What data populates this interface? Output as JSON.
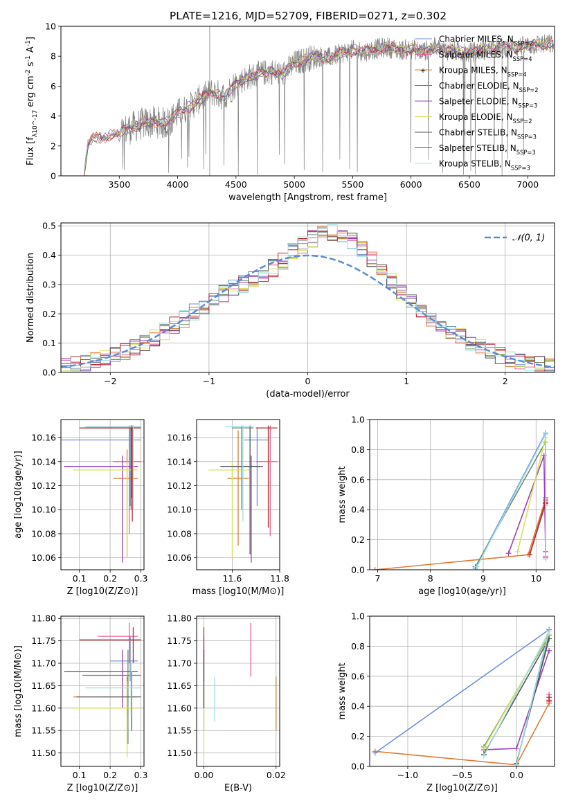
{
  "figure": {
    "title": "PLATE=1216, MJD=52709, FIBERID=0271, z=0.302"
  },
  "colors": {
    "c0": "#6a8fd6",
    "c1": "#e8609d",
    "c2": "#e07a33",
    "c3": "#6b8a6b",
    "c4": "#9a3fb8",
    "c5": "#d8e050",
    "c6": "#555555",
    "c7": "#c0262b",
    "c8": "#9fe0e6",
    "data": "#808080",
    "gauss": "#5b8ad8"
  },
  "chart_data": [
    {
      "id": "spectrum",
      "type": "line",
      "xlabel": "wavelength [Angstrom, rest frame]",
      "ylabel": "Flux [f_λ10^-17 erg cm^-2 s^-1 A^-1]",
      "xlim": [
        3000,
        7230
      ],
      "ylim": [
        0,
        10
      ],
      "xticks": [
        3500,
        4000,
        4500,
        5000,
        5500,
        6000,
        6500,
        7000
      ],
      "yticks": [
        0,
        2,
        4,
        6,
        8,
        10
      ],
      "grid": false,
      "legend_position": "right",
      "legend": [
        "Chabrier MILES, N_SSP=2",
        "Salpeter MILES, N_SSP=4",
        "Kroupa MILES, N_SSP=4",
        "Chabrier ELODIE, N_SSP=2",
        "Salpeter ELODIE, N_SSP=3",
        "Kroupa ELODIE, N_SSP=2",
        "Chabrier STELIB, N_SSP=3",
        "Salpeter STELIB, N_SSP=3",
        "Kroupa STELIB, N_SSP=3"
      ],
      "data_envelope": {
        "x": [
          3200,
          3230,
          3260,
          3300,
          3350,
          3400,
          3450,
          3500,
          3520,
          3600,
          3700,
          3800,
          3900,
          3950,
          4000,
          4100,
          4200,
          4300,
          4400,
          4500,
          4600,
          4700,
          4800,
          4900,
          5000,
          5100,
          5200,
          5300,
          5400,
          5500,
          5600,
          5700,
          5800,
          5900,
          6000,
          6100,
          6200,
          6300,
          6400,
          6500,
          6600,
          6700,
          6800,
          6900,
          7000,
          7100
        ],
        "y": [
          0.0,
          2.0,
          2.4,
          2.6,
          2.5,
          2.6,
          2.8,
          2.7,
          3.0,
          3.2,
          3.5,
          3.6,
          3.5,
          3.8,
          4.2,
          4.6,
          5.2,
          5.6,
          5.3,
          6.2,
          6.6,
          6.8,
          7.0,
          6.8,
          7.5,
          7.8,
          8.0,
          7.9,
          8.2,
          8.4,
          8.3,
          8.5,
          8.6,
          8.4,
          8.5,
          8.3,
          8.6,
          8.4,
          8.3,
          8.2,
          8.4,
          8.5,
          8.6,
          8.6,
          8.7,
          8.8
        ]
      }
    },
    {
      "id": "residuals",
      "type": "histogram",
      "xlabel": "(data-model)/error",
      "ylabel": "Normed distribution",
      "xlim": [
        -2.5,
        2.5
      ],
      "ylim": [
        0,
        0.51
      ],
      "xticks": [
        -2,
        -1,
        0,
        1,
        2
      ],
      "yticks": [
        0.0,
        0.1,
        0.2,
        0.3,
        0.4,
        0.5
      ],
      "grid": true,
      "legend_position": "top-right",
      "legend": [
        "𝒩(0, 1)"
      ],
      "bin_width": 0.1
    },
    {
      "id": "age_vs_Z",
      "type": "errorbar",
      "xlabel": "Z [log10(Z/Z⊙)]",
      "ylabel": "age  [log10(age/yr)]",
      "xlim": [
        0.04,
        0.31
      ],
      "ylim": [
        10.05,
        10.175
      ],
      "xticks": [
        0.1,
        0.2,
        0.3
      ],
      "yticks": [
        10.06,
        10.08,
        10.1,
        10.12,
        10.14,
        10.16
      ],
      "grid": true,
      "points": [
        {
          "x": 0.265,
          "xerr": [
            0.04,
            0.3
          ],
          "y": 10.158,
          "yerr": [
            10.103,
            10.168
          ]
        },
        {
          "x": 0.262,
          "xerr": [
            0.21,
            0.3
          ],
          "y": 10.14,
          "yerr": [
            10.08,
            10.17
          ]
        },
        {
          "x": 0.255,
          "xerr": [
            0.21,
            0.29
          ],
          "y": 10.126,
          "yerr": [
            10.06,
            10.15
          ]
        },
        {
          "x": 0.268,
          "xerr": [
            0.11,
            0.3
          ],
          "y": 10.168,
          "yerr": [
            10.1,
            10.17
          ]
        },
        {
          "x": 0.24,
          "xerr": [
            0.05,
            0.29
          ],
          "y": 10.136,
          "yerr": [
            10.056,
            10.145
          ]
        },
        {
          "x": 0.255,
          "xerr": [
            0.08,
            0.29
          ],
          "y": 10.133,
          "yerr": [
            10.06,
            10.14
          ]
        },
        {
          "x": 0.27,
          "xerr": [
            0.12,
            0.3
          ],
          "y": 10.169,
          "yerr": [
            10.11,
            10.17
          ]
        },
        {
          "x": 0.272,
          "xerr": [
            0.1,
            0.3
          ],
          "y": 10.168,
          "yerr": [
            10.09,
            10.17
          ]
        },
        {
          "x": 0.275,
          "xerr": [
            0.12,
            0.3
          ],
          "y": 10.169,
          "yerr": [
            10.1,
            10.17
          ]
        }
      ]
    },
    {
      "id": "age_vs_mass",
      "type": "errorbar",
      "xlabel": "mass [log10(M/M⊙)]",
      "ylabel": "",
      "xlim": [
        11.45,
        11.8
      ],
      "ylim": [
        10.05,
        10.175
      ],
      "xticks": [
        11.6,
        11.8
      ],
      "yticks": [
        10.06,
        10.08,
        10.1,
        10.12,
        10.14,
        10.16
      ],
      "grid": true,
      "points": [
        {
          "x": 11.705,
          "xerr": [
            11.65,
            11.75
          ],
          "y": 10.158,
          "yerr": [
            10.103,
            10.168
          ]
        },
        {
          "x": 11.76,
          "xerr": [
            11.7,
            11.79
          ],
          "y": 10.14,
          "yerr": [
            10.078,
            10.17
          ]
        },
        {
          "x": 11.625,
          "xerr": [
            11.58,
            11.67
          ],
          "y": 10.126,
          "yerr": [
            10.07,
            10.166
          ]
        },
        {
          "x": 11.64,
          "xerr": [
            11.6,
            11.69
          ],
          "y": 10.168,
          "yerr": [
            10.1,
            10.17
          ]
        },
        {
          "x": 11.68,
          "xerr": [
            11.6,
            11.73
          ],
          "y": 10.136,
          "yerr": [
            10.056,
            10.145
          ]
        },
        {
          "x": 11.6,
          "xerr": [
            11.5,
            11.68
          ],
          "y": 10.133,
          "yerr": [
            10.06,
            10.14
          ]
        },
        {
          "x": 11.675,
          "xerr": [
            11.55,
            11.72
          ],
          "y": 10.136,
          "yerr": [
            10.063,
            10.17
          ]
        },
        {
          "x": 11.752,
          "xerr": [
            11.7,
            11.79
          ],
          "y": 10.168,
          "yerr": [
            10.085,
            10.17
          ]
        },
        {
          "x": 11.645,
          "xerr": [
            11.57,
            11.69
          ],
          "y": 10.169,
          "yerr": [
            10.09,
            10.17
          ]
        }
      ]
    },
    {
      "id": "weight_vs_age",
      "type": "line",
      "xlabel": "age  [log10(age/yr)]",
      "ylabel": "mass weight",
      "xlim": [
        6.85,
        10.35
      ],
      "ylim": [
        0,
        1.0
      ],
      "xticks": [
        7,
        8,
        9,
        10
      ],
      "yticks": [
        0.0,
        0.2,
        0.4,
        0.6,
        0.8,
        1.0
      ],
      "grid": true,
      "series": [
        {
          "color": "c0",
          "x": [
            8.85,
            10.18,
            10.18
          ],
          "y": [
            0.01,
            0.91,
            0.08
          ]
        },
        {
          "color": "c1",
          "x": [
            10.18,
            10.18,
            10.18
          ],
          "y": [
            0.48,
            0.09,
            0.43
          ]
        },
        {
          "color": "c2",
          "x": [
            6.95,
            9.85,
            10.18
          ],
          "y": [
            0.0,
            0.1,
            0.47
          ]
        },
        {
          "color": "c3",
          "x": [
            8.85,
            10.18,
            10.18
          ],
          "y": [
            0.02,
            0.85,
            0.12
          ]
        },
        {
          "color": "c4",
          "x": [
            9.48,
            10.15,
            10.18
          ],
          "y": [
            0.11,
            0.76,
            0.12
          ]
        },
        {
          "color": "c5",
          "x": [
            9.65,
            10.18
          ],
          "y": [
            0.12,
            0.88
          ]
        },
        {
          "color": "c6",
          "x": [
            9.88,
            10.18,
            10.18
          ],
          "y": [
            0.1,
            0.44,
            0.46
          ]
        },
        {
          "color": "c7",
          "x": [
            9.88,
            10.18
          ],
          "y": [
            0.1,
            0.45
          ]
        },
        {
          "color": "c8",
          "x": [
            8.88,
            10.18,
            10.18
          ],
          "y": [
            0.02,
            0.9,
            0.07
          ]
        }
      ]
    },
    {
      "id": "mass_vs_Z",
      "type": "errorbar",
      "xlabel": "Z [log10(Z/Z⊙)]",
      "ylabel": "mass [log10(M/M⊙)]",
      "xlim": [
        0.04,
        0.31
      ],
      "ylim": [
        11.47,
        11.805
      ],
      "xticks": [
        0.1,
        0.2,
        0.3
      ],
      "yticks": [
        11.5,
        11.55,
        11.6,
        11.65,
        11.7,
        11.75,
        11.8
      ],
      "grid": true,
      "points": [
        {
          "x": 0.265,
          "xerr": [
            0.2,
            0.29
          ],
          "y": 11.705,
          "yerr": [
            11.66,
            11.76
          ]
        },
        {
          "x": 0.262,
          "xerr": [
            0.16,
            0.29
          ],
          "y": 11.76,
          "yerr": [
            11.7,
            11.79
          ]
        },
        {
          "x": 0.255,
          "xerr": [
            0.08,
            0.29
          ],
          "y": 11.625,
          "yerr": [
            11.58,
            11.67
          ]
        },
        {
          "x": 0.258,
          "xerr": [
            0.11,
            0.3
          ],
          "y": 11.673,
          "yerr": [
            11.52,
            11.73
          ]
        },
        {
          "x": 0.24,
          "xerr": [
            0.05,
            0.29
          ],
          "y": 11.682,
          "yerr": [
            11.6,
            11.73
          ]
        },
        {
          "x": 0.255,
          "xerr": [
            0.08,
            0.29
          ],
          "y": 11.6,
          "yerr": [
            11.49,
            11.66
          ]
        },
        {
          "x": 0.27,
          "xerr": [
            0.09,
            0.3
          ],
          "y": 11.625,
          "yerr": [
            11.55,
            11.68
          ]
        },
        {
          "x": 0.275,
          "xerr": [
            0.1,
            0.3
          ],
          "y": 11.752,
          "yerr": [
            11.7,
            11.78
          ]
        },
        {
          "x": 0.268,
          "xerr": [
            0.12,
            0.3
          ],
          "y": 11.645,
          "yerr": [
            11.58,
            11.7
          ]
        }
      ]
    },
    {
      "id": "mass_vs_ebv",
      "type": "errorbar",
      "xlabel": "E(B-V)",
      "ylabel": "",
      "xlim": [
        -0.002,
        0.021
      ],
      "ylim": [
        11.47,
        11.805
      ],
      "xticks": [
        0.0,
        0.02
      ],
      "yticks": [
        11.5,
        11.55,
        11.6,
        11.65,
        11.7,
        11.75,
        11.8
      ],
      "grid": true,
      "points": [
        {
          "x": 0.0,
          "yerr": [
            11.66,
            11.76
          ]
        },
        {
          "x": 0.013,
          "yerr": [
            11.67,
            11.79
          ]
        },
        {
          "x": 0.02,
          "yerr": [
            11.55,
            11.67
          ]
        },
        {
          "x": 0.0,
          "yerr": [
            11.55,
            11.7
          ]
        },
        {
          "x": 0.0,
          "yerr": [
            11.6,
            11.73
          ]
        },
        {
          "x": 0.0,
          "yerr": [
            11.49,
            11.66
          ]
        },
        {
          "x": 0.0,
          "yerr": [
            11.6,
            11.73
          ]
        },
        {
          "x": 0.0,
          "yerr": [
            11.7,
            11.78
          ]
        },
        {
          "x": 0.003,
          "yerr": [
            11.57,
            11.67
          ]
        }
      ]
    },
    {
      "id": "weight_vs_Z",
      "type": "line",
      "xlabel": "Z [log10(Z/Z⊙)]",
      "ylabel": "mass weight",
      "xlim": [
        -1.35,
        0.35
      ],
      "ylim": [
        0,
        1.0
      ],
      "xticks": [
        -1.0,
        -0.5,
        0.0
      ],
      "yticks": [
        0.0,
        0.2,
        0.4,
        0.6,
        0.8,
        1.0
      ],
      "grid": true,
      "series": [
        {
          "color": "c0",
          "x": [
            -1.3,
            0.3,
            0.0
          ],
          "y": [
            0.09,
            0.91,
            0.01
          ]
        },
        {
          "color": "c1",
          "x": [
            0.3,
            0.3
          ],
          "y": [
            0.48,
            0.43
          ]
        },
        {
          "color": "c2",
          "x": [
            -1.3,
            0.0,
            0.3
          ],
          "y": [
            0.1,
            0.01,
            0.42
          ]
        },
        {
          "color": "c3",
          "x": [
            -0.3,
            0.3,
            0.0
          ],
          "y": [
            0.13,
            0.87,
            0.02
          ]
        },
        {
          "color": "c4",
          "x": [
            -0.3,
            0.0,
            0.3
          ],
          "y": [
            0.11,
            0.12,
            0.77
          ]
        },
        {
          "color": "c5",
          "x": [
            -0.3,
            0.3
          ],
          "y": [
            0.12,
            0.88
          ]
        },
        {
          "color": "c6",
          "x": [
            -0.3,
            0.3,
            0.0
          ],
          "y": [
            0.08,
            0.85,
            0.02
          ]
        },
        {
          "color": "c7",
          "x": [
            0.3,
            0.3
          ],
          "y": [
            0.44,
            0.46
          ]
        },
        {
          "color": "c8",
          "x": [
            -0.3,
            0.3,
            0.0
          ],
          "y": [
            0.07,
            0.9,
            0.01
          ]
        }
      ]
    }
  ]
}
